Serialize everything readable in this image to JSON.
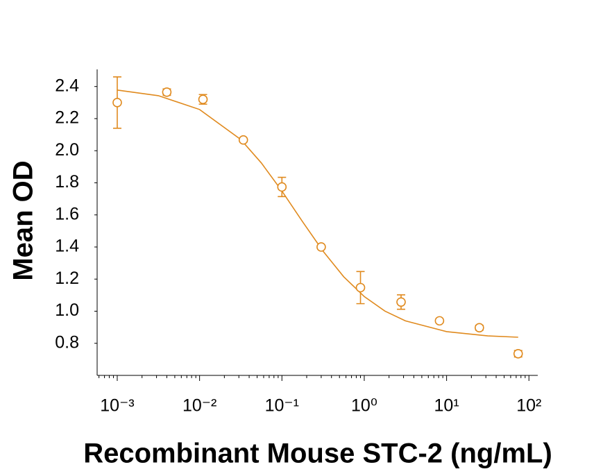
{
  "chart_data": {
    "type": "scatter",
    "x_label": "Recombinant Mouse STC-2 (ng/mL)",
    "y_label": "Mean OD",
    "color": "#e08a1e",
    "log_x": true,
    "x": [
      0.001,
      0.004,
      0.011,
      0.034,
      0.1,
      0.3,
      0.9,
      2.8,
      8.2,
      25,
      74
    ],
    "values": [
      2.3,
      2.365,
      2.32,
      2.067,
      1.774,
      1.4,
      1.147,
      1.057,
      0.94,
      0.897,
      0.735
    ],
    "errors": [
      0.16,
      0.02,
      0.03,
      0.01,
      0.06,
      0.005,
      0.1,
      0.045,
      0.01,
      0.015,
      0.02
    ],
    "fit": {
      "x": [
        0.001,
        0.00316,
        0.01,
        0.0316,
        0.0562,
        0.1,
        0.178,
        0.316,
        0.562,
        1,
        1.78,
        3.16,
        10,
        31.6,
        74
      ],
      "values": [
        2.378,
        2.343,
        2.257,
        2.07,
        1.924,
        1.749,
        1.558,
        1.374,
        1.215,
        1.091,
        1.001,
        0.94,
        0.873,
        0.846,
        0.838
      ]
    },
    "xlim": [
      0.00057,
      128
    ],
    "ylim": [
      0.6,
      2.55
    ],
    "xticks": [
      {
        "value": 0.001,
        "label": "10⁻³"
      },
      {
        "value": 0.01,
        "label": "10⁻²"
      },
      {
        "value": 0.1,
        "label": "10⁻¹"
      },
      {
        "value": 1,
        "label": "10⁰"
      },
      {
        "value": 10,
        "label": "10¹"
      },
      {
        "value": 100,
        "label": "10²"
      }
    ],
    "xminorticks": [
      0.0006,
      0.0007,
      0.0008,
      0.0009,
      0.002,
      0.003,
      0.004,
      0.005,
      0.006,
      0.007,
      0.008,
      0.009,
      0.02,
      0.03,
      0.04,
      0.05,
      0.06,
      0.07,
      0.08,
      0.09,
      0.2,
      0.3,
      0.4,
      0.5,
      0.6,
      0.7,
      0.8,
      0.9,
      2,
      3,
      4,
      5,
      6,
      7,
      8,
      9,
      20,
      30,
      40,
      50,
      60,
      70,
      80,
      90
    ],
    "yticks": [
      0.8,
      {
        "value": 1,
        "label": "1.0"
      },
      1.2,
      1.4,
      1.6,
      1.8,
      {
        "value": 2,
        "label": "2.0"
      },
      2.2,
      2.4
    ]
  }
}
